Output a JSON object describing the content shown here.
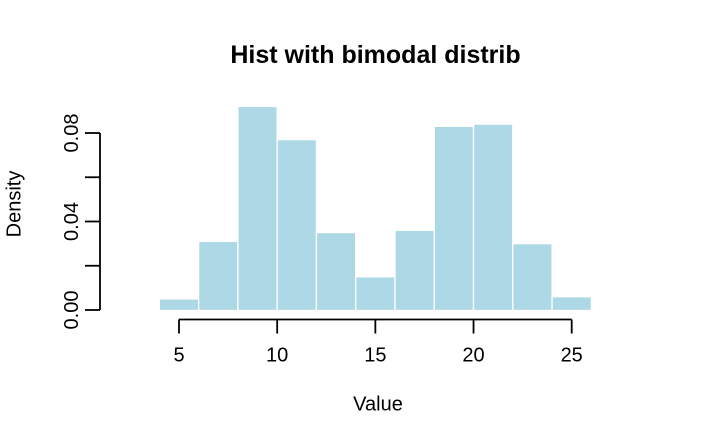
{
  "window": {
    "background": "#FFFFFF"
  },
  "colors": {
    "bar_fill": "#ADD8E6",
    "bar_border": "#FFFFFF",
    "axis": "#000000",
    "text": "#000000"
  },
  "chart_data": {
    "type": "bar",
    "subtype": "histogram",
    "title": "Hist with bimodal distrib",
    "xlabel": "Value",
    "ylabel": "Density",
    "bin_width": 2,
    "bin_edges": [
      4,
      6,
      8,
      10,
      12,
      14,
      16,
      18,
      20,
      22,
      24,
      26
    ],
    "densities": [
      0.005,
      0.031,
      0.092,
      0.077,
      0.035,
      0.015,
      0.036,
      0.083,
      0.084,
      0.03,
      0.006
    ],
    "x_ticks": [
      {
        "value": 5,
        "label": "5"
      },
      {
        "value": 10,
        "label": "10"
      },
      {
        "value": 15,
        "label": "15"
      },
      {
        "value": 20,
        "label": "20"
      },
      {
        "value": 25,
        "label": "25"
      }
    ],
    "y_ticks": [
      {
        "value": 0.0,
        "label": "0.00"
      },
      {
        "value": 0.02,
        "label": ""
      },
      {
        "value": 0.04,
        "label": "0.04"
      },
      {
        "value": 0.06,
        "label": ""
      },
      {
        "value": 0.08,
        "label": "0.08"
      }
    ],
    "xlim": [
      4,
      26
    ],
    "ylim": [
      0,
      0.08
    ],
    "grid": false,
    "legend": false
  }
}
